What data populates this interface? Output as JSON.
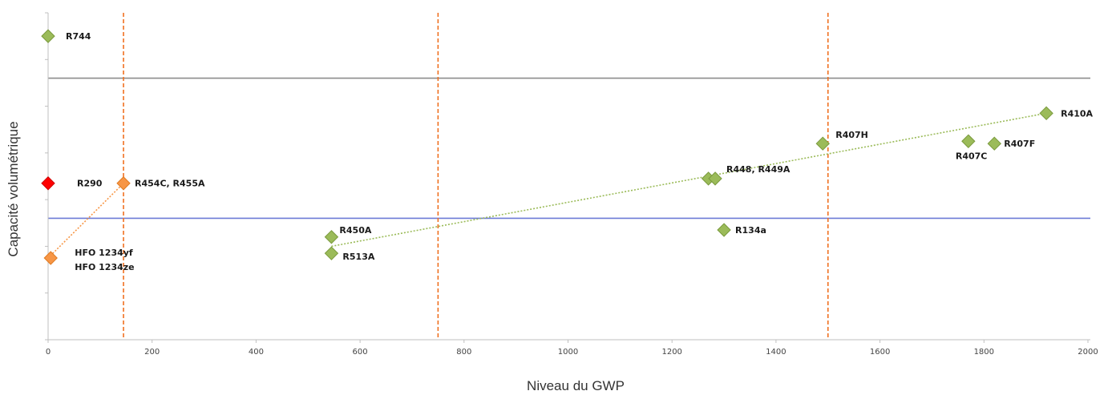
{
  "chart_data": {
    "type": "scatter",
    "title": "",
    "xlabel": "Niveau du GWP",
    "ylabel": "Capacité volumétrique",
    "xlim": [
      0,
      2000
    ],
    "ylim": [
      0,
      7
    ],
    "grid": false,
    "x_ticks": [
      0,
      200,
      400,
      600,
      800,
      1000,
      1200,
      1400,
      1600,
      1800,
      2000
    ],
    "x_tick_labels": [
      "0",
      "200",
      "400",
      "600",
      "800",
      "1000",
      "1200",
      "1400",
      "1600",
      "1800",
      "2000"
    ],
    "y_ticks": [
      0,
      1,
      2,
      3,
      4,
      5,
      6,
      7
    ],
    "colors": {
      "green": "#9bbb59",
      "orange": "#f79646",
      "red": "#ff0000",
      "gray_line": "#8c8c8c",
      "blue_line": "#6d7bd6",
      "divider": "#f07020"
    },
    "points": [
      {
        "x": 0,
        "y": 6.5,
        "label": "R744",
        "color": "green"
      },
      {
        "x": 0,
        "y": 3.35,
        "label": "R290",
        "color": "red"
      },
      {
        "x": 145,
        "y": 3.35,
        "label": "R454C, R455A",
        "color": "orange"
      },
      {
        "x": 5,
        "y": 1.75,
        "label": "HFO 1234yf",
        "label2": "HFO 1234ze",
        "color": "orange"
      },
      {
        "x": 545,
        "y": 2.2,
        "label": "R450A",
        "color": "green"
      },
      {
        "x": 545,
        "y": 1.85,
        "label": "R513A",
        "color": "green"
      },
      {
        "x": 1270,
        "y": 3.45,
        "label": "",
        "color": "green"
      },
      {
        "x": 1283,
        "y": 3.45,
        "label": "R448, R449A",
        "color": "green"
      },
      {
        "x": 1300,
        "y": 2.35,
        "label": "R134a",
        "color": "green"
      },
      {
        "x": 1490,
        "y": 4.2,
        "label": "R407H",
        "color": "green"
      },
      {
        "x": 1770,
        "y": 4.25,
        "label": "R407C",
        "color": "green"
      },
      {
        "x": 1820,
        "y": 4.2,
        "label": "R407F",
        "color": "green"
      },
      {
        "x": 1920,
        "y": 4.85,
        "label": "R410A",
        "color": "green"
      }
    ],
    "reference_lines": [
      {
        "orientation": "horizontal",
        "value": 5.6,
        "color": "gray_line"
      },
      {
        "orientation": "horizontal",
        "value": 2.6,
        "color": "blue_line"
      },
      {
        "orientation": "vertical",
        "value": 145,
        "color": "divider",
        "style": "dashed"
      },
      {
        "orientation": "vertical",
        "value": 750,
        "color": "divider",
        "style": "dashed"
      },
      {
        "orientation": "vertical",
        "value": 1500,
        "color": "divider",
        "style": "dashed"
      }
    ],
    "trendlines": [
      {
        "from": [
          0,
          1.75
        ],
        "to": [
          145,
          3.35
        ],
        "color": "orange"
      },
      {
        "from": [
          545,
          2.0
        ],
        "to": [
          1920,
          4.85
        ],
        "color": "green"
      }
    ]
  }
}
